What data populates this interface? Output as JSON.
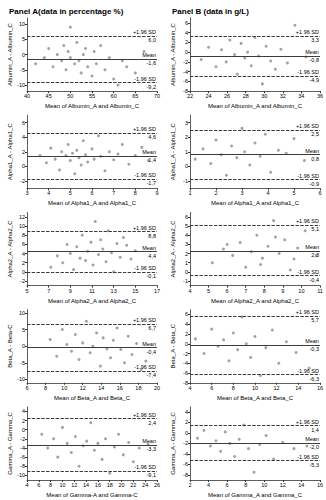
{
  "panel_titles": [
    "Panel A(data in percentage %)",
    "Panel B (data in g/L)"
  ],
  "chart_data": [
    {
      "type": "scatter",
      "color": "#8c8c8c",
      "marker": "circle",
      "grid": false,
      "y_label": "Albumin_A - Albumin_C",
      "x_label": "Mean of Albumin_A and Albumin_C",
      "xlim": [
        40,
        70
      ],
      "xticks": [
        40,
        45,
        50,
        55,
        60,
        65,
        70
      ],
      "ylim": [
        -12,
        12
      ],
      "yticks": [
        -10,
        -5,
        0,
        5,
        10
      ],
      "x": [
        42,
        44,
        45,
        46,
        47,
        48,
        48.5,
        49,
        49.5,
        50,
        50,
        51,
        51.5,
        52,
        52.5,
        53,
        53.5,
        54,
        55,
        55.5,
        56,
        57,
        58,
        59,
        60,
        61,
        62,
        63,
        65,
        67
      ],
      "y": [
        -3,
        -1,
        2,
        -4,
        0,
        -2,
        3,
        -5,
        1,
        9,
        -1,
        -3,
        4,
        -2,
        -6,
        0,
        2,
        -4,
        -7,
        1,
        -3,
        3,
        -5,
        -1,
        -8,
        -10,
        -2,
        -4,
        -6,
        1
      ],
      "reference_lines": [
        {
          "name": "+1.96 SD",
          "value": 6.0,
          "label": "6,0",
          "line_style": "dashed"
        },
        {
          "name": "Mean",
          "value": -1.6,
          "label": "-1,6",
          "line_style": "solid"
        },
        {
          "name": "-1.96 SD",
          "value": -9.2,
          "label": "-9,2",
          "line_style": "dashed"
        }
      ]
    },
    {
      "type": "scatter",
      "color": "#8c8c8c",
      "marker": "circle",
      "grid": false,
      "y_label": "Alpha1_A - Alpha1_C",
      "x_label": "Mean of Alpha1_A and Alpha1_C",
      "xlim": [
        3,
        9
      ],
      "xticks": [
        3,
        4,
        5,
        6,
        7,
        8,
        9
      ],
      "ylim": [
        -3,
        7
      ],
      "yticks": [
        -2,
        0,
        2,
        4,
        6
      ],
      "x": [
        3.6,
        3.9,
        4.1,
        4.3,
        4.5,
        4.6,
        4.8,
        4.9,
        5.0,
        5.1,
        5.2,
        5.3,
        5.4,
        5.5,
        5.6,
        5.7,
        5.8,
        6.0,
        6.1,
        6.3,
        6.4,
        6.6,
        6.8,
        7.0,
        7.2,
        7.4,
        7.7,
        8.0,
        8.3,
        8.6
      ],
      "y": [
        1.5,
        0.5,
        2.5,
        1.0,
        -0.5,
        2.0,
        1.5,
        3.0,
        0.8,
        1.8,
        -1.0,
        2.2,
        1.2,
        0.2,
        3.5,
        1.6,
        0.6,
        2.4,
        1.0,
        4.2,
        1.4,
        -0.6,
        2.0,
        0.9,
        1.7,
        3.0,
        0.3,
        1.5,
        2.6,
        0.8
      ],
      "reference_lines": [
        {
          "name": "+1.96 SD",
          "value": 4.6,
          "label": "4,6",
          "line_style": "dashed"
        },
        {
          "name": "Mean",
          "value": 1.4,
          "label": "1,4",
          "line_style": "solid"
        },
        {
          "name": "-1.96 SD",
          "value": -1.7,
          "label": "-1,7",
          "line_style": "dashed"
        }
      ]
    },
    {
      "type": "scatter",
      "color": "#8c8c8c",
      "marker": "circle",
      "grid": false,
      "y_label": "Alpha2_A - Alpha2_C",
      "x_label": "Mean of Alpha2_A and Alpha2_C",
      "xlim": [
        5,
        17
      ],
      "xticks": [
        5,
        7,
        9,
        11,
        13,
        15,
        17
      ],
      "ylim": [
        -3,
        13
      ],
      "yticks": [
        -2,
        0,
        2,
        4,
        6,
        8,
        10,
        12
      ],
      "x": [
        7.2,
        7.8,
        8.3,
        8.7,
        9.0,
        9.3,
        9.6,
        9.9,
        10.1,
        10.4,
        10.6,
        10.9,
        11.1,
        11.3,
        11.6,
        11.8,
        12.0,
        12.3,
        12.5,
        12.8,
        13.0,
        13.3,
        13.6,
        13.9,
        14.2,
        14.6,
        15.0
      ],
      "y": [
        1.0,
        3.5,
        2.0,
        6.0,
        4.0,
        0.5,
        5.5,
        3.0,
        8.0,
        2.5,
        4.5,
        6.5,
        1.5,
        11.0,
        3.8,
        7.0,
        5.0,
        2.2,
        9.0,
        4.2,
        0.0,
        6.2,
        3.2,
        7.5,
        5.8,
        2.8,
        4.6
      ],
      "reference_lines": [
        {
          "name": "+1.96 SD",
          "value": 8.8,
          "label": "8,8",
          "line_style": "dashed"
        },
        {
          "name": "Mean",
          "value": 4.4,
          "label": "4,4",
          "line_style": "solid"
        },
        {
          "name": "-1.96 SD",
          "value": -0.1,
          "label": "-0,1",
          "line_style": "dashed"
        }
      ]
    },
    {
      "type": "scatter",
      "color": "#8c8c8c",
      "marker": "circle",
      "grid": false,
      "y_label": "Beta_A - Beta-C",
      "x_label": "Mean of Beta_A and Beta_C",
      "xlim": [
        6,
        20
      ],
      "xticks": [
        6,
        8,
        10,
        12,
        14,
        16,
        18,
        20
      ],
      "ylim": [
        -11,
        11
      ],
      "yticks": [
        -10,
        -5,
        0,
        5,
        10
      ],
      "x": [
        8.5,
        9.2,
        9.8,
        10.3,
        10.8,
        11.2,
        11.6,
        12.0,
        12.4,
        12.8,
        13.1,
        13.5,
        13.9,
        14.2,
        14.6,
        15.0,
        15.3,
        15.7,
        16.1,
        16.5,
        16.9,
        17.3,
        17.8,
        18.3,
        18.8
      ],
      "y": [
        2.0,
        -3.0,
        5.0,
        0.5,
        -1.5,
        3.5,
        -4.0,
        1.0,
        7.5,
        -2.0,
        0.0,
        4.0,
        -6.0,
        2.5,
        -0.8,
        -3.5,
        1.8,
        5.5,
        -1.0,
        -5.0,
        3.0,
        -2.5,
        0.8,
        -7.0,
        -4.5
      ],
      "reference_lines": [
        {
          "name": "+1.96 SD",
          "value": 6.7,
          "label": "6,7",
          "line_style": "dashed"
        },
        {
          "name": "Mean",
          "value": -0.4,
          "label": "-0,4",
          "line_style": "solid"
        },
        {
          "name": "-1.96 SD",
          "value": -7.4,
          "label": "-7,4",
          "line_style": "dashed"
        }
      ]
    },
    {
      "type": "scatter",
      "color": "#8c8c8c",
      "marker": "circle",
      "grid": false,
      "y_label": "Gamma_A - Gamma_C",
      "x_label": "Mean of Gamma-A and Gamma-C",
      "xlim": [
        4,
        26
      ],
      "xticks": [
        4,
        6,
        8,
        10,
        12,
        14,
        16,
        18,
        20,
        22,
        24,
        26
      ],
      "ylim": [
        -11,
        5
      ],
      "yticks": [
        -10,
        -8,
        -6,
        -4,
        -2,
        0,
        2,
        4
      ],
      "x": [
        6.5,
        7.5,
        8.5,
        9.2,
        10.0,
        10.8,
        11.5,
        12.2,
        12.8,
        13.5,
        14.1,
        14.8,
        15.4,
        16.0,
        16.7,
        17.3,
        18.0,
        18.8,
        19.5,
        20.3,
        21.2,
        22.0,
        23.0,
        24.5
      ],
      "y": [
        -1.0,
        -4.0,
        -2.0,
        -6.0,
        0.5,
        -3.0,
        -5.0,
        -1.5,
        -8.0,
        -3.5,
        -2.5,
        1.5,
        -4.5,
        -3.0,
        -6.5,
        -2.0,
        -9.5,
        -3.8,
        -1.0,
        -5.5,
        -2.8,
        -7.0,
        -4.0,
        -3.2
      ],
      "reference_lines": [
        {
          "name": "+1.96 SD",
          "value": 2.4,
          "label": "2,4",
          "line_style": "dashed"
        },
        {
          "name": "Mean",
          "value": -3.3,
          "label": "-3,3",
          "line_style": "solid"
        },
        {
          "name": "-1.96 SD",
          "value": -9.1,
          "label": "-9,1",
          "line_style": "dashed"
        }
      ]
    },
    {
      "type": "scatter",
      "color": "#8c8c8c",
      "marker": "circle",
      "grid": false,
      "y_label": "Albumin_A - Albumin_C",
      "x_label": "Mean of Albumin_A and Albumin_C",
      "xlim": [
        22,
        36
      ],
      "xticks": [
        22,
        24,
        26,
        28,
        30,
        32,
        34,
        36
      ],
      "ylim": [
        -8,
        7
      ],
      "yticks": [
        -8,
        -6,
        -4,
        -2,
        0,
        2,
        4,
        6
      ],
      "x": [
        23.2,
        24.0,
        24.8,
        25.4,
        25.9,
        26.3,
        26.8,
        27.1,
        27.5,
        27.9,
        28.2,
        28.6,
        29.0,
        29.4,
        29.8,
        30.2,
        30.7,
        31.2,
        31.8,
        32.5,
        33.3,
        34.5
      ],
      "y": [
        -1.5,
        1.0,
        -3.0,
        0.5,
        -2.0,
        2.5,
        -0.5,
        -4.5,
        1.8,
        -1.2,
        0.0,
        -2.8,
        3.0,
        -0.8,
        -6.5,
        1.2,
        -1.8,
        -3.5,
        0.6,
        -2.2,
        5.5,
        -1.0
      ],
      "reference_lines": [
        {
          "name": "+1.96 SD",
          "value": 3.3,
          "label": "3,3",
          "line_style": "dashed"
        },
        {
          "name": "Mean",
          "value": -0.8,
          "label": "-0,8",
          "line_style": "solid"
        },
        {
          "name": "-1.96 SD",
          "value": -4.9,
          "label": "-4,9",
          "line_style": "dashed"
        }
      ]
    },
    {
      "type": "scatter",
      "color": "#8c8c8c",
      "marker": "circle",
      "grid": false,
      "y_label": "Alpha1_A - Alpha1_C",
      "x_label": "Mean of Alpha1_A and Alpha1_C",
      "xlim": [
        1,
        6
      ],
      "xticks": [
        1,
        2,
        3,
        4,
        5,
        6
      ],
      "ylim": [
        -1.5,
        3.5
      ],
      "yticks": [
        -1,
        0,
        1,
        2,
        3
      ],
      "x": [
        1.2,
        1.5,
        1.8,
        2.0,
        2.2,
        2.4,
        2.6,
        2.8,
        3.0,
        3.1,
        3.3,
        3.5,
        3.7,
        3.9,
        4.1,
        4.4,
        4.7,
        5.0,
        5.4
      ],
      "y": [
        0.5,
        1.2,
        0.2,
        1.8,
        0.8,
        -0.6,
        1.4,
        0.6,
        2.6,
        1.0,
        0.1,
        1.6,
        0.7,
        2.2,
        -0.4,
        1.1,
        0.9,
        1.9,
        0.4
      ],
      "reference_lines": [
        {
          "name": "+1.96 SD",
          "value": 2.5,
          "label": "2,5",
          "line_style": "dashed"
        },
        {
          "name": "Mean",
          "value": 0.8,
          "label": "0,8",
          "line_style": "solid"
        },
        {
          "name": "-1.96 SD",
          "value": -0.9,
          "label": "-0,9",
          "line_style": "dashed"
        }
      ]
    },
    {
      "type": "scatter",
      "color": "#8c8c8c",
      "marker": "circle",
      "grid": false,
      "y_label": "Alpha2_A - Alpha2_C",
      "x_label": "Mean of Alpha2_A and Alpha2_C",
      "xlim": [
        4,
        11
      ],
      "xticks": [
        4,
        5,
        6,
        7,
        8,
        9,
        10,
        11
      ],
      "ylim": [
        -1.5,
        6.5
      ],
      "yticks": [
        -1,
        0,
        1,
        2,
        3,
        4,
        5,
        6
      ],
      "x": [
        5.2,
        5.8,
        6.0,
        6.3,
        6.7,
        7.0,
        7.3,
        7.6,
        7.8,
        7.9,
        8.2,
        8.5,
        8.6,
        8.8,
        9.1,
        9.4,
        9.6,
        9.8,
        10.2,
        10.8
      ],
      "y": [
        1.0,
        2.5,
        3.0,
        1.8,
        3.2,
        0.5,
        2.2,
        4.0,
        0.8,
        1.5,
        2.8,
        5.6,
        3.8,
        2.0,
        3.5,
        0.2,
        1.4,
        2.6,
        4.5,
        1.8
      ],
      "reference_lines": [
        {
          "name": "+1.96 SD",
          "value": 5.1,
          "label": "5,1",
          "line_style": "dashed"
        },
        {
          "name": "Mean",
          "value": 2.3,
          "label": "2,3",
          "line_style": "solid"
        },
        {
          "name": "-1.96 SD",
          "value": -0.4,
          "label": "-0,4",
          "line_style": "dashed"
        }
      ]
    },
    {
      "type": "scatter",
      "color": "#8c8c8c",
      "marker": "circle",
      "grid": false,
      "y_label": "Beta_A - Beta_C",
      "x_label": "Mean of Beta_A and Beta_C",
      "xlim": [
        4,
        16
      ],
      "xticks": [
        4,
        6,
        8,
        10,
        12,
        14,
        16
      ],
      "ylim": [
        -8,
        7
      ],
      "yticks": [
        -8,
        -6,
        -4,
        -2,
        0,
        2,
        4,
        6
      ],
      "x": [
        4.5,
        5.3,
        6.0,
        6.6,
        7.1,
        7.6,
        8.0,
        8.4,
        8.8,
        9.2,
        9.6,
        10.0,
        10.5,
        11.0,
        11.6,
        12.2,
        12.9,
        13.8,
        15.0
      ],
      "y": [
        1.0,
        -2.0,
        3.0,
        -0.5,
        0.8,
        -3.5,
        2.2,
        -1.2,
        5.5,
        0.0,
        -2.8,
        1.5,
        -6.5,
        -0.8,
        2.8,
        -4.0,
        0.4,
        -1.8,
        -5.0
      ],
      "reference_lines": [
        {
          "name": "+1.96 SD",
          "value": 5.7,
          "label": "5,7",
          "line_style": "dashed"
        },
        {
          "name": "Mean",
          "value": -0.3,
          "label": "-0,3",
          "line_style": "solid"
        },
        {
          "name": "-1.96 SD",
          "value": -6.3,
          "label": "-6,3",
          "line_style": "dashed"
        }
      ]
    },
    {
      "type": "scatter",
      "color": "#8c8c8c",
      "marker": "circle",
      "grid": false,
      "y_label": "Gamma_A - Gamma_C",
      "x_label": "Mean of Gamma_A and Gamma_C",
      "xlim": [
        2,
        16
      ],
      "xticks": [
        2,
        4,
        6,
        8,
        10,
        12,
        14,
        16
      ],
      "ylim": [
        -9,
        5
      ],
      "yticks": [
        -8,
        -6,
        -4,
        -2,
        0,
        2,
        4
      ],
      "x": [
        2.8,
        3.5,
        4.2,
        4.8,
        5.3,
        5.8,
        6.3,
        6.8,
        7.3,
        7.8,
        8.3,
        8.9,
        9.5,
        10.2,
        11.0,
        12.0,
        13.2,
        14.6
      ],
      "y": [
        -1.0,
        0.5,
        -2.5,
        -1.5,
        -3.5,
        0.2,
        -2.0,
        -4.5,
        -1.2,
        1.5,
        -3.0,
        -7.5,
        -2.2,
        -0.5,
        -5.0,
        -1.8,
        -3.0,
        -2.5
      ],
      "reference_lines": [
        {
          "name": "+1.96 SD",
          "value": 1.4,
          "label": "1,4",
          "line_style": "dashed"
        },
        {
          "name": "Mean",
          "value": -2.0,
          "label": "-2,0",
          "line_style": "solid"
        },
        {
          "name": "-1.96 SD",
          "value": -5.3,
          "label": "-5,3",
          "line_style": "dashed"
        }
      ]
    }
  ]
}
